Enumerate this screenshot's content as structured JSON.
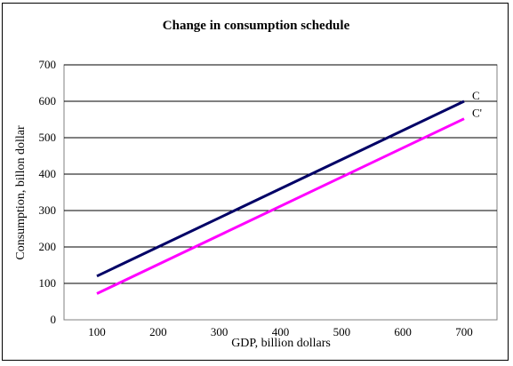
{
  "chart_data": {
    "type": "line",
    "title": "Change in consumption schedule",
    "xlabel": "GDP, billion dollars",
    "ylabel": "Consumption, billon dollar",
    "xlim": [
      100,
      700
    ],
    "ylim": [
      0,
      700
    ],
    "x_ticks": [
      100,
      200,
      300,
      400,
      500,
      600,
      700
    ],
    "y_ticks": [
      0,
      100,
      200,
      300,
      400,
      500,
      600,
      700
    ],
    "grid": "horizontal",
    "series": [
      {
        "name": "C",
        "color": "#000066",
        "x": [
          100,
          700
        ],
        "y": [
          120,
          600
        ]
      },
      {
        "name": "C'",
        "color": "#ff00ff",
        "x": [
          100,
          700
        ],
        "y": [
          72,
          552
        ]
      }
    ]
  }
}
